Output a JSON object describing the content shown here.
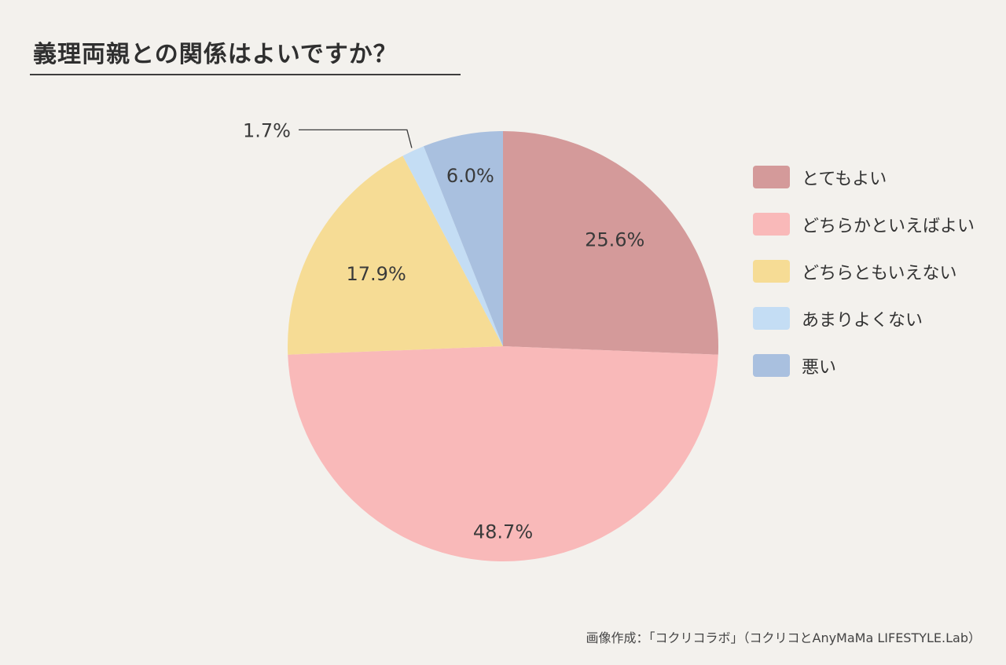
{
  "title": "義理両親との関係はよいですか？",
  "credit": "画像作成：「コクリコラボ」（コクリコとAnyMaMa LIFESTYLE.Lab）",
  "chart_data": {
    "type": "pie",
    "title": "義理両親との関係はよいですか？",
    "legend_position": "right",
    "slices": [
      {
        "name": "とてもよい",
        "value": 25.6,
        "label": "25.6%",
        "color": "#d49a9a"
      },
      {
        "name": "どちらかといえばよい",
        "value": 48.7,
        "label": "48.7%",
        "color": "#f9b9b9"
      },
      {
        "name": "どちらともいえない",
        "value": 17.9,
        "label": "17.9%",
        "color": "#f6dc95"
      },
      {
        "name": "あまりよくない",
        "value": 1.7,
        "label": "1.7%",
        "color": "#c4ddf4"
      },
      {
        "name": "悪い",
        "value": 6.0,
        "label": "6.0%",
        "color": "#a9c0df"
      }
    ]
  }
}
